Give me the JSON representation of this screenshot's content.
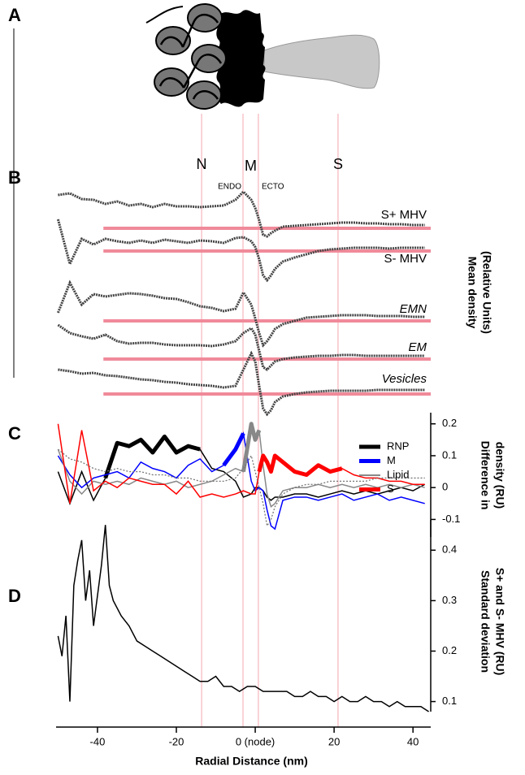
{
  "panel_a": {
    "label": "A"
  },
  "membrane_label": "M",
  "reference_lines": [
    {
      "label": "N",
      "x": -13.6
    },
    {
      "label": "ENDO",
      "x": -3.1
    },
    {
      "label": "ECTO",
      "x": 0.8
    },
    {
      "label": "S",
      "x": 21
    }
  ],
  "chart_data": [
    {
      "type": "stacked-traces",
      "panel_label": "B",
      "y_label": [
        "Mean density",
        "(Relative Units)"
      ],
      "xlim": [
        -50.5,
        44.5
      ],
      "baseline_from": -38.5,
      "baseline_color": "#f08a9a",
      "x": [
        -50,
        -47,
        -44,
        -41,
        -38,
        -35,
        -32,
        -29,
        -26,
        -23,
        -20,
        -17,
        -14,
        -11,
        -8,
        -5,
        -3,
        -1,
        0,
        1,
        2,
        3,
        4,
        5,
        7,
        10,
        13,
        16,
        19,
        22,
        25,
        28,
        31,
        34,
        37,
        40,
        43
      ],
      "series": [
        {
          "name": "S+ MHV",
          "color": "#444444",
          "values": [
            4.1,
            4.3,
            3.6,
            3.5,
            3.0,
            3.3,
            2.8,
            3.0,
            2.6,
            3.0,
            2.7,
            2.7,
            2.6,
            2.7,
            2.8,
            3.5,
            4.5,
            3.5,
            2.5,
            1.0,
            -0.8,
            -1.0,
            -0.6,
            -0.3,
            0.2,
            0.3,
            0.4,
            0.5,
            0.6,
            0.7,
            0.7,
            0.6,
            0.6,
            0.5,
            0.5,
            0.4,
            0.4
          ]
        },
        {
          "name": "S- MHV",
          "color": "#444444",
          "values": [
            3.9,
            -1.6,
            1.5,
            0.8,
            1.5,
            1.2,
            1.0,
            1.3,
            1.0,
            1.4,
            1.2,
            1.0,
            1.3,
            1.2,
            1.0,
            1.6,
            1.7,
            1.2,
            0.5,
            -1.0,
            -3.0,
            -3.6,
            -3.0,
            -2.2,
            -1.3,
            -0.8,
            -0.4,
            0,
            0.2,
            0.3,
            0.4,
            0.4,
            0.4,
            0.3,
            0.4,
            0.4,
            0.4
          ]
        },
        {
          "name": "EMN",
          "color": "#444444",
          "values": [
            1.0,
            4.7,
            2.0,
            3.3,
            3.0,
            3.2,
            3.4,
            3.3,
            3.1,
            2.8,
            2.7,
            2.3,
            1.8,
            1.6,
            1.2,
            1.5,
            3.5,
            2.0,
            0.3,
            -1.5,
            -3.0,
            -2.5,
            -1.8,
            -1.0,
            -0.4,
            0,
            0.4,
            0.5,
            0.6,
            0.7,
            0.7,
            0.7,
            0.6,
            0.6,
            0.6,
            0.5,
            0.5
          ]
        },
        {
          "name": "EM",
          "color": "#444444",
          "values": [
            4.2,
            3.2,
            2.8,
            2.5,
            3.0,
            2.2,
            1.9,
            2.0,
            2.0,
            1.8,
            1.7,
            1.7,
            1.7,
            1.6,
            1.8,
            2.2,
            3.2,
            3.8,
            3.0,
            1.0,
            -1.0,
            -1.3,
            -0.8,
            -0.3,
            0,
            0.2,
            0.3,
            0.4,
            0.4,
            0.5,
            0.5,
            0.4,
            0.4,
            0.4,
            0.4,
            0.4,
            0.4
          ]
        },
        {
          "name": "Vesicles",
          "color": "#444444",
          "values": [
            3.0,
            2.8,
            2.5,
            2.6,
            2.3,
            2.2,
            2.0,
            1.8,
            1.7,
            1.5,
            1.4,
            1.2,
            1.1,
            1.0,
            0.8,
            1.0,
            3.0,
            5.0,
            4.0,
            1.0,
            -1.8,
            -2.5,
            -2.0,
            -1.0,
            -0.3,
            0,
            0.2,
            0.3,
            0.4,
            0.4,
            0.4,
            0.4,
            0.5,
            0.5,
            0.5,
            0.5,
            0.5
          ]
        }
      ]
    },
    {
      "type": "line",
      "panel_label": "C",
      "y_label": [
        "Difference in",
        "density (RU)"
      ],
      "xlim": [
        -50.5,
        44.5
      ],
      "ylim": [
        -0.155,
        0.235
      ],
      "yticks": [
        -0.1,
        0,
        0.1,
        0.2
      ],
      "legend": "upper right",
      "x": [
        -50,
        -47,
        -44,
        -41,
        -38,
        -35,
        -32,
        -29,
        -26,
        -23,
        -20,
        -17,
        -14,
        -11,
        -8,
        -5,
        -3,
        -1,
        0,
        1,
        2,
        3,
        4,
        5,
        7,
        10,
        13,
        16,
        19,
        22,
        25,
        28,
        31,
        34,
        37,
        40,
        43
      ],
      "series": [
        {
          "name": "RNP",
          "color": "#000000",
          "highlight": [
            -38,
            -14
          ],
          "values": [
            0.05,
            -0.05,
            0.05,
            -0.04,
            0.03,
            0.14,
            0.13,
            0.15,
            0.11,
            0.16,
            0.11,
            0.13,
            0.12,
            0.06,
            0.05,
            0.02,
            -0.03,
            -0.02,
            0.0,
            0.0,
            -0.01,
            -0.03,
            -0.04,
            -0.03,
            -0.03,
            -0.02,
            -0.02,
            -0.03,
            -0.02,
            -0.01,
            -0.02,
            -0.01,
            -0.02,
            -0.01,
            0.0,
            -0.01,
            0.01
          ]
        },
        {
          "name": "M",
          "color": "#0000ff",
          "highlight": [
            -8,
            -3
          ],
          "values": [
            0.1,
            0.04,
            0.0,
            0.03,
            0.04,
            0.05,
            0.03,
            0.08,
            0.06,
            0.05,
            0.03,
            0.07,
            0.09,
            0.05,
            0.07,
            0.12,
            0.17,
            0.02,
            -0.01,
            0.0,
            -0.01,
            -0.07,
            -0.12,
            -0.13,
            -0.04,
            -0.03,
            -0.03,
            -0.04,
            -0.03,
            -0.02,
            -0.04,
            -0.03,
            -0.02,
            -0.04,
            -0.03,
            -0.04,
            -0.05
          ]
        },
        {
          "name": "Lipid",
          "color": "#888888",
          "highlight": [
            -3,
            1
          ],
          "values": [
            0.12,
            0.02,
            -0.02,
            0.02,
            0.01,
            0.02,
            0.01,
            0.03,
            0.02,
            0.01,
            0.02,
            0.0,
            0.01,
            0.02,
            0.04,
            0.06,
            0.05,
            0.2,
            0.15,
            0.18,
            0.07,
            -0.02,
            -0.06,
            -0.05,
            -0.01,
            0.0,
            0.0,
            0.01,
            0.0,
            0.01,
            0.0,
            0.01,
            0.0,
            0.01,
            0.0,
            0.01,
            0.0
          ]
        },
        {
          "name": "S",
          "color": "#ff0000",
          "highlight": [
            1,
            22
          ],
          "values": [
            0.2,
            -0.05,
            0.18,
            -0.01,
            0.02,
            0.0,
            0.03,
            0.02,
            0.01,
            0.01,
            -0.02,
            0.02,
            -0.03,
            -0.02,
            -0.03,
            -0.02,
            -0.01,
            -0.02,
            -0.02,
            0.05,
            0.1,
            0.08,
            0.05,
            0.1,
            0.08,
            0.05,
            0.04,
            0.07,
            0.05,
            0.06,
            0.04,
            0.03,
            0.03,
            0.02,
            0.02,
            0.01,
            0.01
          ]
        },
        {
          "color": "#777777",
          "dash": true,
          "values": [
            0.12,
            0.09,
            0.08,
            0.06,
            0.05,
            0.06,
            0.05,
            0.05,
            0.04,
            0.04,
            0.03,
            0.03,
            0.02,
            0.02,
            0.02,
            0.03,
            0.06,
            0.1,
            0.05,
            0.0,
            -0.05,
            -0.12,
            -0.1,
            -0.06,
            -0.02,
            0.0,
            0.01,
            0.01,
            0.02,
            0.02,
            0.02,
            0.02,
            0.03,
            0.03,
            0.03,
            0.03,
            0.03
          ]
        }
      ]
    },
    {
      "type": "line",
      "panel_label": "D",
      "y_label": [
        "Standard deviation",
        "S+ and S- MHV (RU)"
      ],
      "x_label": "Radial Distance (nm)",
      "xlim": [
        -50.5,
        44.5
      ],
      "xticks": [
        -40,
        -20,
        {
          "value": 0,
          "label": "0 (node)"
        },
        20,
        40
      ],
      "ylim": [
        0.08,
        0.46
      ],
      "yticks": [
        0.1,
        0.2,
        0.3,
        0.4
      ],
      "x": [
        -50,
        -49,
        -48,
        -47,
        -46,
        -45,
        -44,
        -43,
        -42,
        -41,
        -40,
        -39,
        -38,
        -37,
        -36,
        -34,
        -32,
        -30,
        -28,
        -26,
        -24,
        -22,
        -20,
        -18,
        -16,
        -14,
        -12,
        -10,
        -8,
        -6,
        -4,
        -2,
        0,
        2,
        4,
        6,
        8,
        10,
        12,
        14,
        16,
        18,
        20,
        22,
        24,
        26,
        28,
        30,
        32,
        34,
        36,
        38,
        40,
        42,
        44
      ],
      "series": [
        {
          "color": "#000000",
          "values": [
            0.23,
            0.19,
            0.27,
            0.1,
            0.33,
            0.38,
            0.42,
            0.3,
            0.36,
            0.25,
            0.31,
            0.37,
            0.45,
            0.33,
            0.3,
            0.27,
            0.25,
            0.22,
            0.21,
            0.2,
            0.19,
            0.18,
            0.17,
            0.16,
            0.15,
            0.14,
            0.14,
            0.15,
            0.13,
            0.13,
            0.12,
            0.13,
            0.13,
            0.12,
            0.12,
            0.12,
            0.12,
            0.11,
            0.11,
            0.12,
            0.11,
            0.11,
            0.1,
            0.11,
            0.1,
            0.1,
            0.11,
            0.1,
            0.1,
            0.09,
            0.1,
            0.09,
            0.09,
            0.09,
            0.08
          ]
        }
      ]
    }
  ]
}
